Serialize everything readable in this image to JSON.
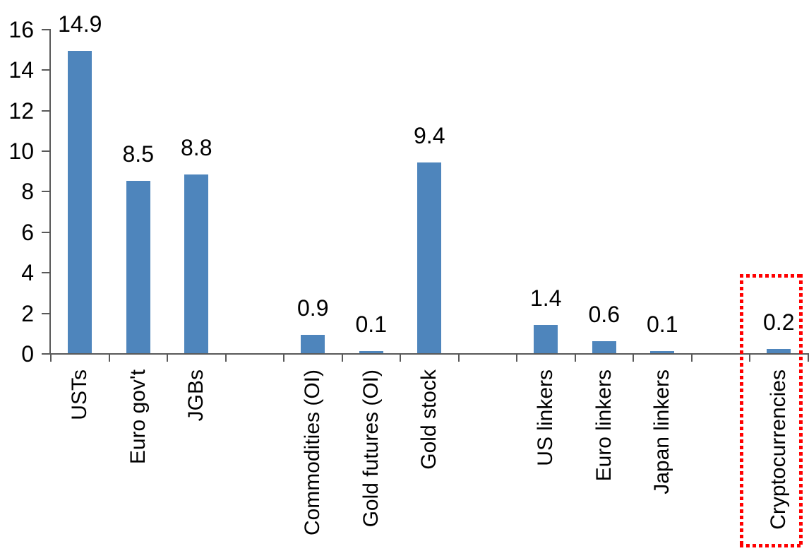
{
  "chart_data": {
    "type": "bar",
    "title": "",
    "xlabel": "",
    "ylabel": "",
    "categories": [
      "USTs",
      "Euro gov't",
      "JGBs",
      "",
      "Commodities (OI)",
      "Gold futures (OI)",
      "Gold stock",
      "",
      "US linkers",
      "Euro linkers",
      "Japan linkers",
      "",
      "Cryptocurrencies"
    ],
    "values": [
      14.9,
      8.5,
      8.8,
      null,
      0.9,
      0.1,
      9.4,
      null,
      1.4,
      0.6,
      0.1,
      null,
      0.2
    ],
    "data_labels": [
      "14.9",
      "8.5",
      "8.8",
      "",
      "0.9",
      "0.1",
      "9.4",
      "",
      "1.4",
      "0.6",
      "0.1",
      "",
      "0.2"
    ],
    "y_ticks": [
      0,
      2,
      4,
      6,
      8,
      10,
      12,
      14,
      16
    ],
    "ylim": [
      0,
      16
    ],
    "grid": false,
    "legend": null,
    "bar_color": "#4E85BC",
    "axis_color": "#595959",
    "label_color": "#000000",
    "highlight": {
      "target_category": "Cryptocurrencies",
      "target_index": 12,
      "shape": "dotted-rectangle",
      "border_color": "#FF0000"
    }
  }
}
